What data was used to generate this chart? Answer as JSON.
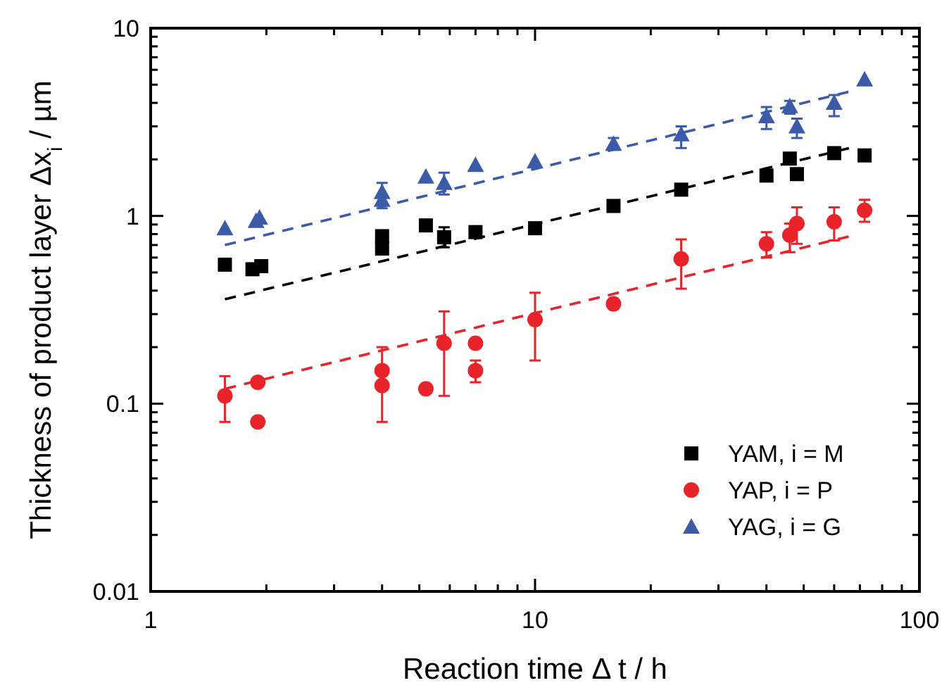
{
  "chart_data": {
    "type": "scatter",
    "xlabel": "Reaction time Δ t / h",
    "ylabel": "Thickness of product layer Δx$_{i}$ / µm",
    "log": "xy",
    "xlim": [
      1,
      100
    ],
    "ylim": [
      0.01,
      10
    ],
    "xticks": [
      1,
      {
        "value": 2,
        "label": null
      },
      {
        "value": 3,
        "label": null
      },
      {
        "value": 4,
        "label": null
      },
      {
        "value": 5,
        "label": null
      },
      {
        "value": 6,
        "label": null
      },
      {
        "value": 7,
        "label": null
      },
      {
        "value": 8,
        "label": null
      },
      {
        "value": 9,
        "label": null
      },
      10,
      {
        "value": 20,
        "label": null
      },
      {
        "value": 30,
        "label": null
      },
      {
        "value": 40,
        "label": null
      },
      {
        "value": 50,
        "label": null
      },
      {
        "value": 60,
        "label": null
      },
      {
        "value": 70,
        "label": null
      },
      {
        "value": 80,
        "label": null
      },
      {
        "value": 90,
        "label": null
      },
      100
    ],
    "yticks": [
      0.01,
      {
        "value": 0.02,
        "label": null
      },
      {
        "value": 0.03,
        "label": null
      },
      {
        "value": 0.04,
        "label": null
      },
      {
        "value": 0.05,
        "label": null
      },
      {
        "value": 0.06,
        "label": null
      },
      {
        "value": 0.07,
        "label": null
      },
      {
        "value": 0.08,
        "label": null
      },
      {
        "value": 0.09,
        "label": null
      },
      0.1,
      {
        "value": 0.2,
        "label": null
      },
      {
        "value": 0.3,
        "label": null
      },
      {
        "value": 0.4,
        "label": null
      },
      {
        "value": 0.5,
        "label": null
      },
      {
        "value": 0.6,
        "label": null
      },
      {
        "value": 0.7,
        "label": null
      },
      {
        "value": 0.8,
        "label": null
      },
      {
        "value": 0.9,
        "label": null
      },
      1,
      {
        "value": 2,
        "label": null
      },
      {
        "value": 3,
        "label": null
      },
      {
        "value": 4,
        "label": null
      },
      {
        "value": 5,
        "label": null
      },
      {
        "value": 6,
        "label": null
      },
      {
        "value": 7,
        "label": null
      },
      {
        "value": 8,
        "label": null
      },
      {
        "value": 9,
        "label": null
      },
      10
    ],
    "grid": false,
    "legend": "bottom right",
    "series": [
      {
        "name": "YAM, i = M",
        "color": "#000000",
        "marker": "square",
        "x": [
          1.56,
          1.84,
          1.94,
          4,
          4,
          5.2,
          5.8,
          7,
          10,
          16,
          24,
          40,
          46,
          48,
          60,
          72
        ],
        "values": [
          0.55,
          0.52,
          0.54,
          0.78,
          0.67,
          0.89,
          0.77,
          0.82,
          0.86,
          1.13,
          1.38,
          1.64,
          2.02,
          1.67,
          2.16,
          2.1
        ],
        "errors": [
          null,
          null,
          null,
          null,
          null,
          null,
          [
            0.68,
            0.87
          ],
          null,
          null,
          null,
          null,
          null,
          null,
          null,
          null,
          null
        ]
      },
      {
        "name": "YAP, i = P",
        "color": "#e8232a",
        "marker": "circle",
        "x": [
          1.56,
          1.9,
          1.9,
          4,
          4,
          5.2,
          5.8,
          7,
          7,
          10,
          16,
          24,
          40,
          46,
          48,
          60,
          72
        ],
        "values": [
          0.11,
          0.13,
          0.08,
          0.15,
          0.125,
          0.12,
          0.21,
          0.21,
          0.15,
          0.28,
          0.34,
          0.59,
          0.71,
          0.79,
          0.91,
          0.93,
          1.07
        ],
        "errors": [
          [
            0.08,
            0.14
          ],
          null,
          null,
          [
            0.08,
            0.2
          ],
          null,
          null,
          [
            0.11,
            0.31
          ],
          null,
          [
            0.13,
            0.17
          ],
          [
            0.17,
            0.39
          ],
          null,
          [
            0.41,
            0.75
          ],
          [
            0.6,
            0.82
          ],
          [
            0.64,
            0.91
          ],
          [
            0.71,
            1.11
          ],
          [
            0.74,
            1.11
          ],
          [
            0.93,
            1.22
          ]
        ]
      },
      {
        "name": "YAG, i = G",
        "color": "#3b5ba9",
        "marker": "triangle",
        "x": [
          1.56,
          1.88,
          1.92,
          4,
          4,
          5.2,
          5.8,
          7,
          10,
          16,
          24,
          40,
          46,
          48,
          60,
          72
        ],
        "values": [
          0.86,
          0.94,
          0.98,
          1.34,
          1.22,
          1.62,
          1.5,
          1.87,
          1.95,
          2.42,
          2.72,
          3.4,
          3.84,
          3.0,
          4.0,
          5.33
        ],
        "errors": [
          null,
          null,
          null,
          [
            1.1,
            1.5
          ],
          null,
          null,
          [
            1.3,
            1.7
          ],
          null,
          null,
          [
            2.25,
            2.6
          ],
          [
            2.3,
            3.0
          ],
          [
            2.9,
            3.8
          ],
          [
            3.5,
            4.1
          ],
          [
            2.6,
            3.3
          ],
          [
            3.4,
            4.4
          ],
          null
        ]
      },
      {
        "type": "line",
        "color": "#000000",
        "line_style": "dashed",
        "marker": "none",
        "x": [
          1.56,
          66
        ],
        "values": [
          0.36,
          2.3
        ]
      },
      {
        "type": "line",
        "color": "#e8232a",
        "line_style": "dashed",
        "marker": "none",
        "x": [
          1.56,
          66
        ],
        "values": [
          0.12,
          0.78
        ]
      },
      {
        "type": "line",
        "color": "#3b5ba9",
        "line_style": "dashed",
        "marker": "none",
        "x": [
          1.56,
          66
        ],
        "values": [
          0.7,
          4.6
        ]
      }
    ]
  }
}
